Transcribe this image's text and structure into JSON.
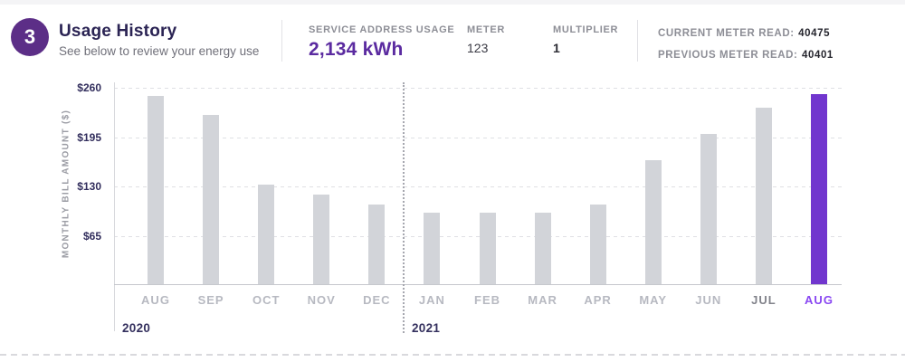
{
  "header": {
    "step_number": "3",
    "title": "Usage History",
    "subtitle": "See below to review your energy use",
    "service_usage": {
      "label": "SERVICE ADDRESS USAGE",
      "value": "2,134 kWh"
    },
    "meter": {
      "label": "METER",
      "value": "123"
    },
    "multiplier": {
      "label": "MULTIPLIER",
      "value": "1"
    },
    "current_read": {
      "label": "CURRENT METER READ:",
      "value": "40475"
    },
    "previous_read": {
      "label": "PREVIOUS METER READ:",
      "value": "40401"
    }
  },
  "chart_data": {
    "type": "bar",
    "title": "",
    "ylabel": "MONTHLY BILL AMOUNT ($)",
    "ylim": [
      0,
      260
    ],
    "ytick_values": [
      65,
      130,
      195,
      260
    ],
    "ytick_labels": [
      "$65",
      "$130",
      "$195",
      "$260"
    ],
    "grid": "horizontal-dashed",
    "legend": "none",
    "year_labels": {
      "left": "2020",
      "right": "2021"
    },
    "series": [
      {
        "month": "AUG",
        "year": "2020",
        "value": 249,
        "state": "normal"
      },
      {
        "month": "SEP",
        "year": "2020",
        "value": 224,
        "state": "normal"
      },
      {
        "month": "OCT",
        "year": "2020",
        "value": 132,
        "state": "normal"
      },
      {
        "month": "NOV",
        "year": "2020",
        "value": 119,
        "state": "normal"
      },
      {
        "month": "DEC",
        "year": "2020",
        "value": 106,
        "state": "normal"
      },
      {
        "month": "JAN",
        "year": "2021",
        "value": 95,
        "state": "normal"
      },
      {
        "month": "FEB",
        "year": "2021",
        "value": 95,
        "state": "normal"
      },
      {
        "month": "MAR",
        "year": "2021",
        "value": 95,
        "state": "normal"
      },
      {
        "month": "APR",
        "year": "2021",
        "value": 106,
        "state": "normal"
      },
      {
        "month": "MAY",
        "year": "2021",
        "value": 165,
        "state": "normal"
      },
      {
        "month": "JUN",
        "year": "2021",
        "value": 199,
        "state": "normal"
      },
      {
        "month": "JUL",
        "year": "2021",
        "value": 234,
        "state": "recent"
      },
      {
        "month": "AUG",
        "year": "2021",
        "value": 252,
        "state": "highlight"
      }
    ]
  },
  "colors": {
    "accent_purple": "#5c2e87",
    "usage_value_purple": "#5b2ba0",
    "bar_gray": "#d2d4d9",
    "bar_highlight_purple": "#7136ce",
    "month_highlight_purple": "#8947f2",
    "navy_text": "#2b2454",
    "tick_navy": "#312d5c",
    "muted_gray": "#8d8e96"
  }
}
